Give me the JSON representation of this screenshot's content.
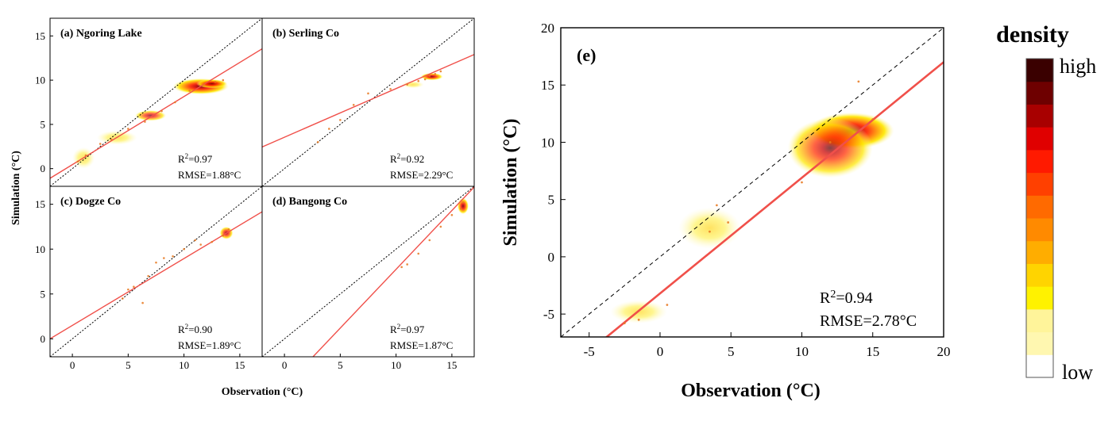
{
  "figure": {
    "colorbar": {
      "title": "density",
      "high_label": "high",
      "low_label": "low",
      "colors": [
        "#ffffff",
        "#fff7b0",
        "#fff49a",
        "#fff200",
        "#ffd400",
        "#ffad00",
        "#ff8a00",
        "#ff6a00",
        "#ff4000",
        "#ff1a00",
        "#e00000",
        "#a80000",
        "#6e0000",
        "#3a0000"
      ]
    },
    "small_axes": {
      "xlabel": "Observation (°C)",
      "ylabel": "Simulation (°C)",
      "xlim": [
        -2,
        17
      ],
      "ylim": [
        -2,
        17
      ],
      "xticks": [
        0,
        5,
        10,
        15
      ],
      "yticks": [
        0,
        5,
        10,
        15
      ]
    },
    "large_axes": {
      "xlabel": "Observation (°C)",
      "ylabel": "Simulation (°C)",
      "xlim": [
        -7,
        20
      ],
      "ylim": [
        -7,
        20
      ],
      "xticks": [
        -5,
        0,
        5,
        10,
        15,
        20
      ],
      "yticks": [
        -5,
        0,
        5,
        10,
        15,
        20
      ]
    }
  },
  "chart_data": [
    {
      "type": "scatter",
      "id": "a",
      "title": "(a) Ngoring Lake",
      "r2": "R²=0.97",
      "rmse": "RMSE=1.88°C",
      "fit": {
        "slope": 0.77,
        "intercept": 0.45
      },
      "one_to_one": true,
      "density_blobs": [
        {
          "x": 11.5,
          "y": 9.3,
          "rx": 2.5,
          "ry": 0.9,
          "w": 1.0
        },
        {
          "x": 12.5,
          "y": 9.6,
          "rx": 1.4,
          "ry": 0.5,
          "w": 0.8
        },
        {
          "x": 7.0,
          "y": 6.0,
          "rx": 1.4,
          "ry": 0.6,
          "w": 0.5
        },
        {
          "x": 4.0,
          "y": 3.5,
          "rx": 1.8,
          "ry": 0.8,
          "w": 0.3
        },
        {
          "x": 1.0,
          "y": 1.2,
          "rx": 1.0,
          "ry": 1.2,
          "w": 0.3
        }
      ],
      "points": [
        [
          0.5,
          0.8
        ],
        [
          1.2,
          1.5
        ],
        [
          2.5,
          2.8
        ],
        [
          3.5,
          3.3
        ],
        [
          5.0,
          4.5
        ],
        [
          6.5,
          5.3
        ],
        [
          8.0,
          6.5
        ],
        [
          9.2,
          7.5
        ],
        [
          10.5,
          8.8
        ],
        [
          11.8,
          9.5
        ],
        [
          12.8,
          9.8
        ],
        [
          13.5,
          10.0
        ]
      ]
    },
    {
      "type": "scatter",
      "id": "b",
      "title": "(b) Serling Co",
      "r2": "R²=0.92",
      "rmse": "RMSE=2.29°C",
      "fit": {
        "slope": 0.55,
        "intercept": 3.55
      },
      "one_to_one": true,
      "density_blobs": [
        {
          "x": 13.2,
          "y": 10.4,
          "rx": 1.0,
          "ry": 0.4,
          "w": 0.9
        },
        {
          "x": 11.5,
          "y": 9.5,
          "rx": 1.0,
          "ry": 0.4,
          "w": 0.3
        }
      ],
      "points": [
        [
          3.0,
          3.0
        ],
        [
          4.0,
          4.5
        ],
        [
          5.0,
          5.5
        ],
        [
          6.2,
          7.2
        ],
        [
          7.5,
          8.5
        ],
        [
          9.5,
          9.0
        ],
        [
          11.0,
          9.5
        ],
        [
          12.0,
          9.9
        ],
        [
          12.6,
          10.1
        ],
        [
          13.0,
          10.5
        ],
        [
          13.5,
          10.7
        ],
        [
          14.0,
          11.0
        ]
      ]
    },
    {
      "type": "scatter",
      "id": "c",
      "title": "(c) Dogze Co",
      "r2": "R²=0.90",
      "rmse": "RMSE=1.89°C",
      "fit": {
        "slope": 0.745,
        "intercept": 1.5
      },
      "one_to_one": true,
      "density_blobs": [
        {
          "x": 13.8,
          "y": 11.8,
          "rx": 0.6,
          "ry": 0.7,
          "w": 0.7
        }
      ],
      "points": [
        [
          4.5,
          4.5
        ],
        [
          5.0,
          5.5
        ],
        [
          5.5,
          5.8
        ],
        [
          6.3,
          4.0
        ],
        [
          6.8,
          7.0
        ],
        [
          7.5,
          8.5
        ],
        [
          8.2,
          9.0
        ],
        [
          9.0,
          9.2
        ],
        [
          10.0,
          10.0
        ],
        [
          11.0,
          11.0
        ],
        [
          11.5,
          10.5
        ],
        [
          12.5,
          10.8
        ],
        [
          13.5,
          11.5
        ],
        [
          14.0,
          12.2
        ]
      ]
    },
    {
      "type": "scatter",
      "id": "d",
      "title": "(d) Bangong Co",
      "r2": "R²=0.97",
      "rmse": "RMSE=1.87°C",
      "fit": {
        "slope": 1.31,
        "intercept": -5.35
      },
      "one_to_one": true,
      "density_blobs": [
        {
          "x": 16.0,
          "y": 14.8,
          "rx": 0.5,
          "ry": 0.9,
          "w": 0.9
        }
      ],
      "points": [
        [
          10.5,
          8.0
        ],
        [
          11.0,
          8.3
        ],
        [
          12.0,
          9.5
        ],
        [
          13.0,
          11.0
        ],
        [
          14.0,
          12.5
        ],
        [
          15.0,
          13.8
        ],
        [
          15.8,
          14.5
        ],
        [
          16.0,
          15.2
        ]
      ]
    },
    {
      "type": "scatter",
      "id": "e",
      "title": "(e)",
      "r2": "R²=0.94",
      "rmse": "RMSE=2.78°C",
      "fit": {
        "slope": 1.01,
        "intercept": -3.2
      },
      "one_to_one": true,
      "density_blobs": [
        {
          "x": 13.5,
          "y": 11.0,
          "rx": 3.0,
          "ry": 1.6,
          "w": 1.0
        },
        {
          "x": 12.0,
          "y": 9.5,
          "rx": 3.0,
          "ry": 2.6,
          "w": 0.55
        },
        {
          "x": 3.5,
          "y": 2.5,
          "rx": 2.2,
          "ry": 1.8,
          "w": 0.3
        },
        {
          "x": -1.5,
          "y": -4.8,
          "rx": 2.0,
          "ry": 1.0,
          "w": 0.3
        }
      ],
      "points": [
        [
          -2.5,
          -5.8
        ],
        [
          -1.5,
          -5.5
        ],
        [
          0.5,
          -4.2
        ],
        [
          3.5,
          2.2
        ],
        [
          4.0,
          4.5
        ],
        [
          4.8,
          3.0
        ],
        [
          10.0,
          6.5
        ],
        [
          12.0,
          10.0
        ],
        [
          14.0,
          15.3
        ],
        [
          15.0,
          12.0
        ]
      ]
    }
  ]
}
